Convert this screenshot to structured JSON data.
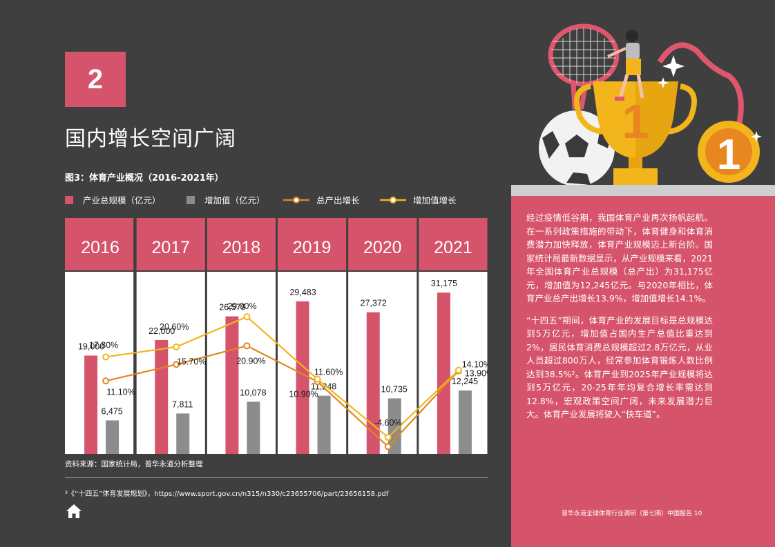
{
  "section": {
    "number": "2",
    "title": "国内增长空间广阔"
  },
  "figure": {
    "title": "图3：体育产业概况（2016-2021年）",
    "legend": {
      "total": "产业总规模（亿元）",
      "added": "增加值（亿元）",
      "total_growth": "总产出增长",
      "added_growth": "增加值增长"
    },
    "source": "资料来源：国家统计局，普华永道分析整理"
  },
  "chart_data": {
    "type": "bar",
    "categories": [
      "2016",
      "2017",
      "2018",
      "2019",
      "2020",
      "2021"
    ],
    "series": [
      {
        "name": "产业总规模（亿元）",
        "type": "bar",
        "values": [
          19000,
          22000,
          26579,
          29483,
          27372,
          31175
        ],
        "labels": [
          "19,000",
          "22,000",
          "26,579",
          "29,483",
          "27,372",
          "31,175"
        ]
      },
      {
        "name": "增加值（亿元）",
        "type": "bar",
        "values": [
          6475,
          7811,
          10078,
          11248,
          10735,
          12245
        ],
        "labels": [
          "6,475",
          "7,811",
          "10,078",
          "11,248",
          "10,735",
          "12,245"
        ]
      },
      {
        "name": "总产出增长",
        "type": "line",
        "values": [
          11.1,
          15.7,
          20.9,
          10.9,
          -7.2,
          13.9
        ],
        "labels": [
          "11.10%",
          "15.70%",
          "20.90%",
          "10.90%",
          "-7.20%",
          "13.90%"
        ]
      },
      {
        "name": "增加值增长",
        "type": "line",
        "values": [
          17.8,
          20.6,
          29.0,
          11.6,
          -4.6,
          14.1
        ],
        "labels": [
          "17.80%",
          "20.60%",
          "29.00%",
          "11.60%",
          "-4.60%",
          "14.10%"
        ]
      }
    ],
    "colors": {
      "total": "#d6546b",
      "added": "#8c8c8c",
      "total_growth": "#e0861f",
      "added_growth": "#f2b51c",
      "header": "#d6546b"
    }
  },
  "footnote": "²《“十四五”体育发展规划》，https://www.sport.gov.cn/n315/n330/c23655706/part/23656158.pdf",
  "panel": {
    "p1": "经过疫情低谷期，我国体育产业再次扬帆起航。在一系列政策措施的带动下，体育健身和体育消费潜力加快释放，体育产业规模迈上新台阶。国家统计局最新数据显示，从产业规模来看，2021年全国体育产业总规模（总产出）为31,175亿元，增加值为12,245亿元。与2020年相比，体育产业总产出增长13.9%，增加值增长14.1%。",
    "p2": "“十四五”期间，体育产业的发展目标是总规模达到5万亿元，增加值占国内生产总值比重达到2%，居民体育消费总规模超过2.8万亿元，从业人员超过800万人，经常参加体育锻炼人数比例达到38.5%²。体育产业到2025年产业规模将达到5万亿元，20-25年年均复合增长率需达到12.8%，宏观政策空间广阔，未来发展潜力巨大。体育产业发展将驶入“快车道”。"
  },
  "footer": "普华永道全球体育行业调研（第七期）中国报告  10"
}
